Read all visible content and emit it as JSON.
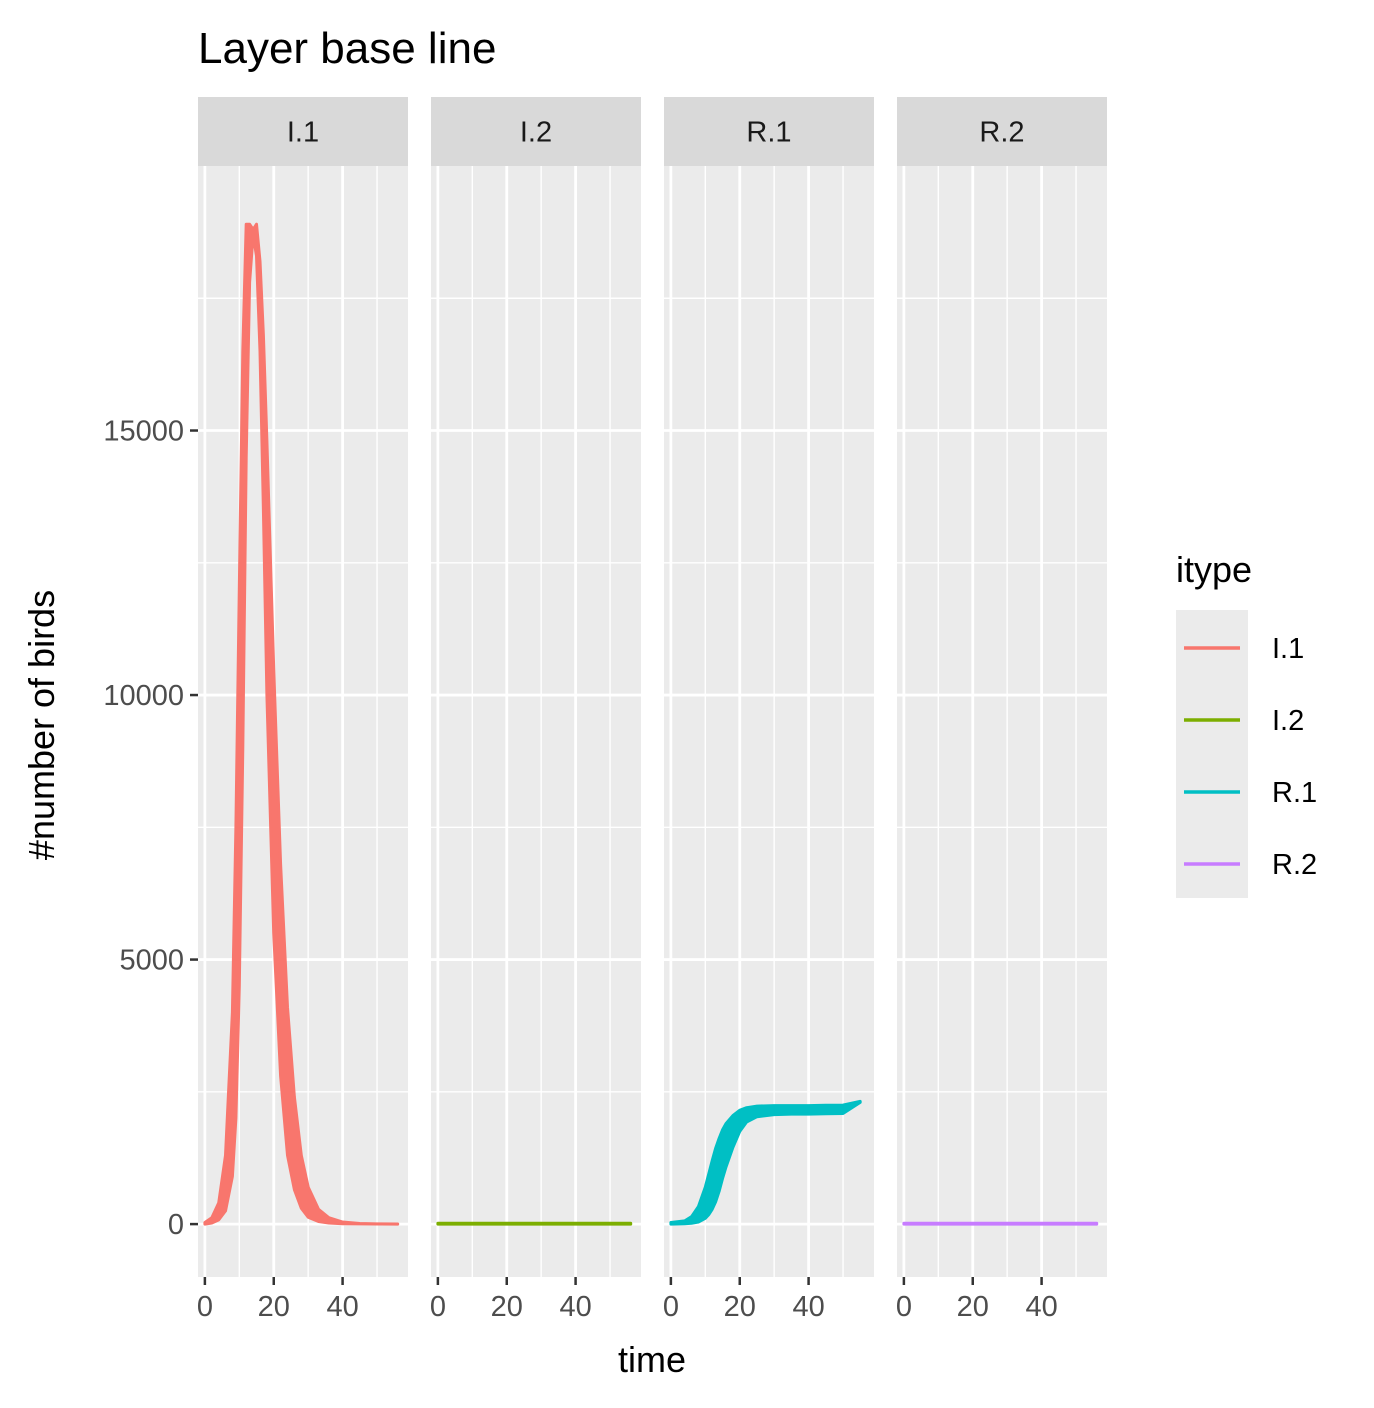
{
  "chart_data": {
    "type": "line",
    "title": "Layer base line",
    "xlabel": "time",
    "ylabel": "#number of birds",
    "xlim": [
      -2,
      59
    ],
    "ylim": [
      -1000,
      20000
    ],
    "x_ticks": [
      0,
      20,
      40
    ],
    "x_tick_labels": [
      "0",
      "20",
      "40"
    ],
    "y_ticks": [
      0,
      5000,
      10000,
      15000
    ],
    "y_tick_labels": [
      "0",
      "5000",
      "10000",
      "15000"
    ],
    "grid": true,
    "legend": {
      "title": "itype",
      "placement": "right",
      "entries": [
        "I.1",
        "I.2",
        "R.1",
        "R.2"
      ]
    },
    "series": [
      {
        "name": "I.1",
        "facet": "I.1",
        "color": "#F8766D",
        "x": [
          0,
          2,
          4,
          6,
          8,
          9,
          10,
          11,
          12,
          13,
          14,
          15,
          16,
          17,
          18,
          20,
          22,
          24,
          26,
          28,
          30,
          33,
          36,
          40,
          45,
          50,
          56
        ],
        "y_low": [
          0,
          20,
          80,
          250,
          900,
          2000,
          4500,
          9000,
          14500,
          17800,
          18700,
          18300,
          16500,
          13500,
          10000,
          5500,
          2800,
          1300,
          650,
          300,
          130,
          50,
          20,
          8,
          3,
          1,
          0
        ],
        "y_high": [
          30,
          120,
          400,
          1300,
          4000,
          7500,
          12000,
          16500,
          18900,
          18900,
          18800,
          18900,
          18200,
          16800,
          14800,
          10500,
          6800,
          4100,
          2400,
          1300,
          700,
          280,
          120,
          40,
          12,
          4,
          1
        ]
      },
      {
        "name": "I.2",
        "facet": "I.2",
        "color": "#7CAE00",
        "x": [
          0,
          56
        ],
        "y_low": [
          0,
          0
        ],
        "y_high": [
          15,
          15
        ]
      },
      {
        "name": "R.1",
        "facet": "R.1",
        "color": "#00BFC4",
        "x": [
          0,
          4,
          6,
          8,
          10,
          11,
          12,
          13,
          14,
          15,
          16,
          18,
          20,
          22,
          25,
          30,
          35,
          40,
          45,
          50,
          55
        ],
        "y_low": [
          0,
          5,
          15,
          40,
          110,
          180,
          280,
          420,
          620,
          860,
          1080,
          1450,
          1750,
          1930,
          2030,
          2070,
          2080,
          2080,
          2085,
          2090,
          2300
        ],
        "y_high": [
          30,
          60,
          140,
          330,
          700,
          950,
          1200,
          1430,
          1620,
          1780,
          1900,
          2050,
          2150,
          2200,
          2230,
          2240,
          2240,
          2240,
          2245,
          2250,
          2320
        ]
      },
      {
        "name": "R.2",
        "facet": "R.2",
        "color": "#C77CFF",
        "x": [
          0,
          56
        ],
        "y_low": [
          0,
          0
        ],
        "y_high": [
          15,
          15
        ]
      }
    ]
  }
}
